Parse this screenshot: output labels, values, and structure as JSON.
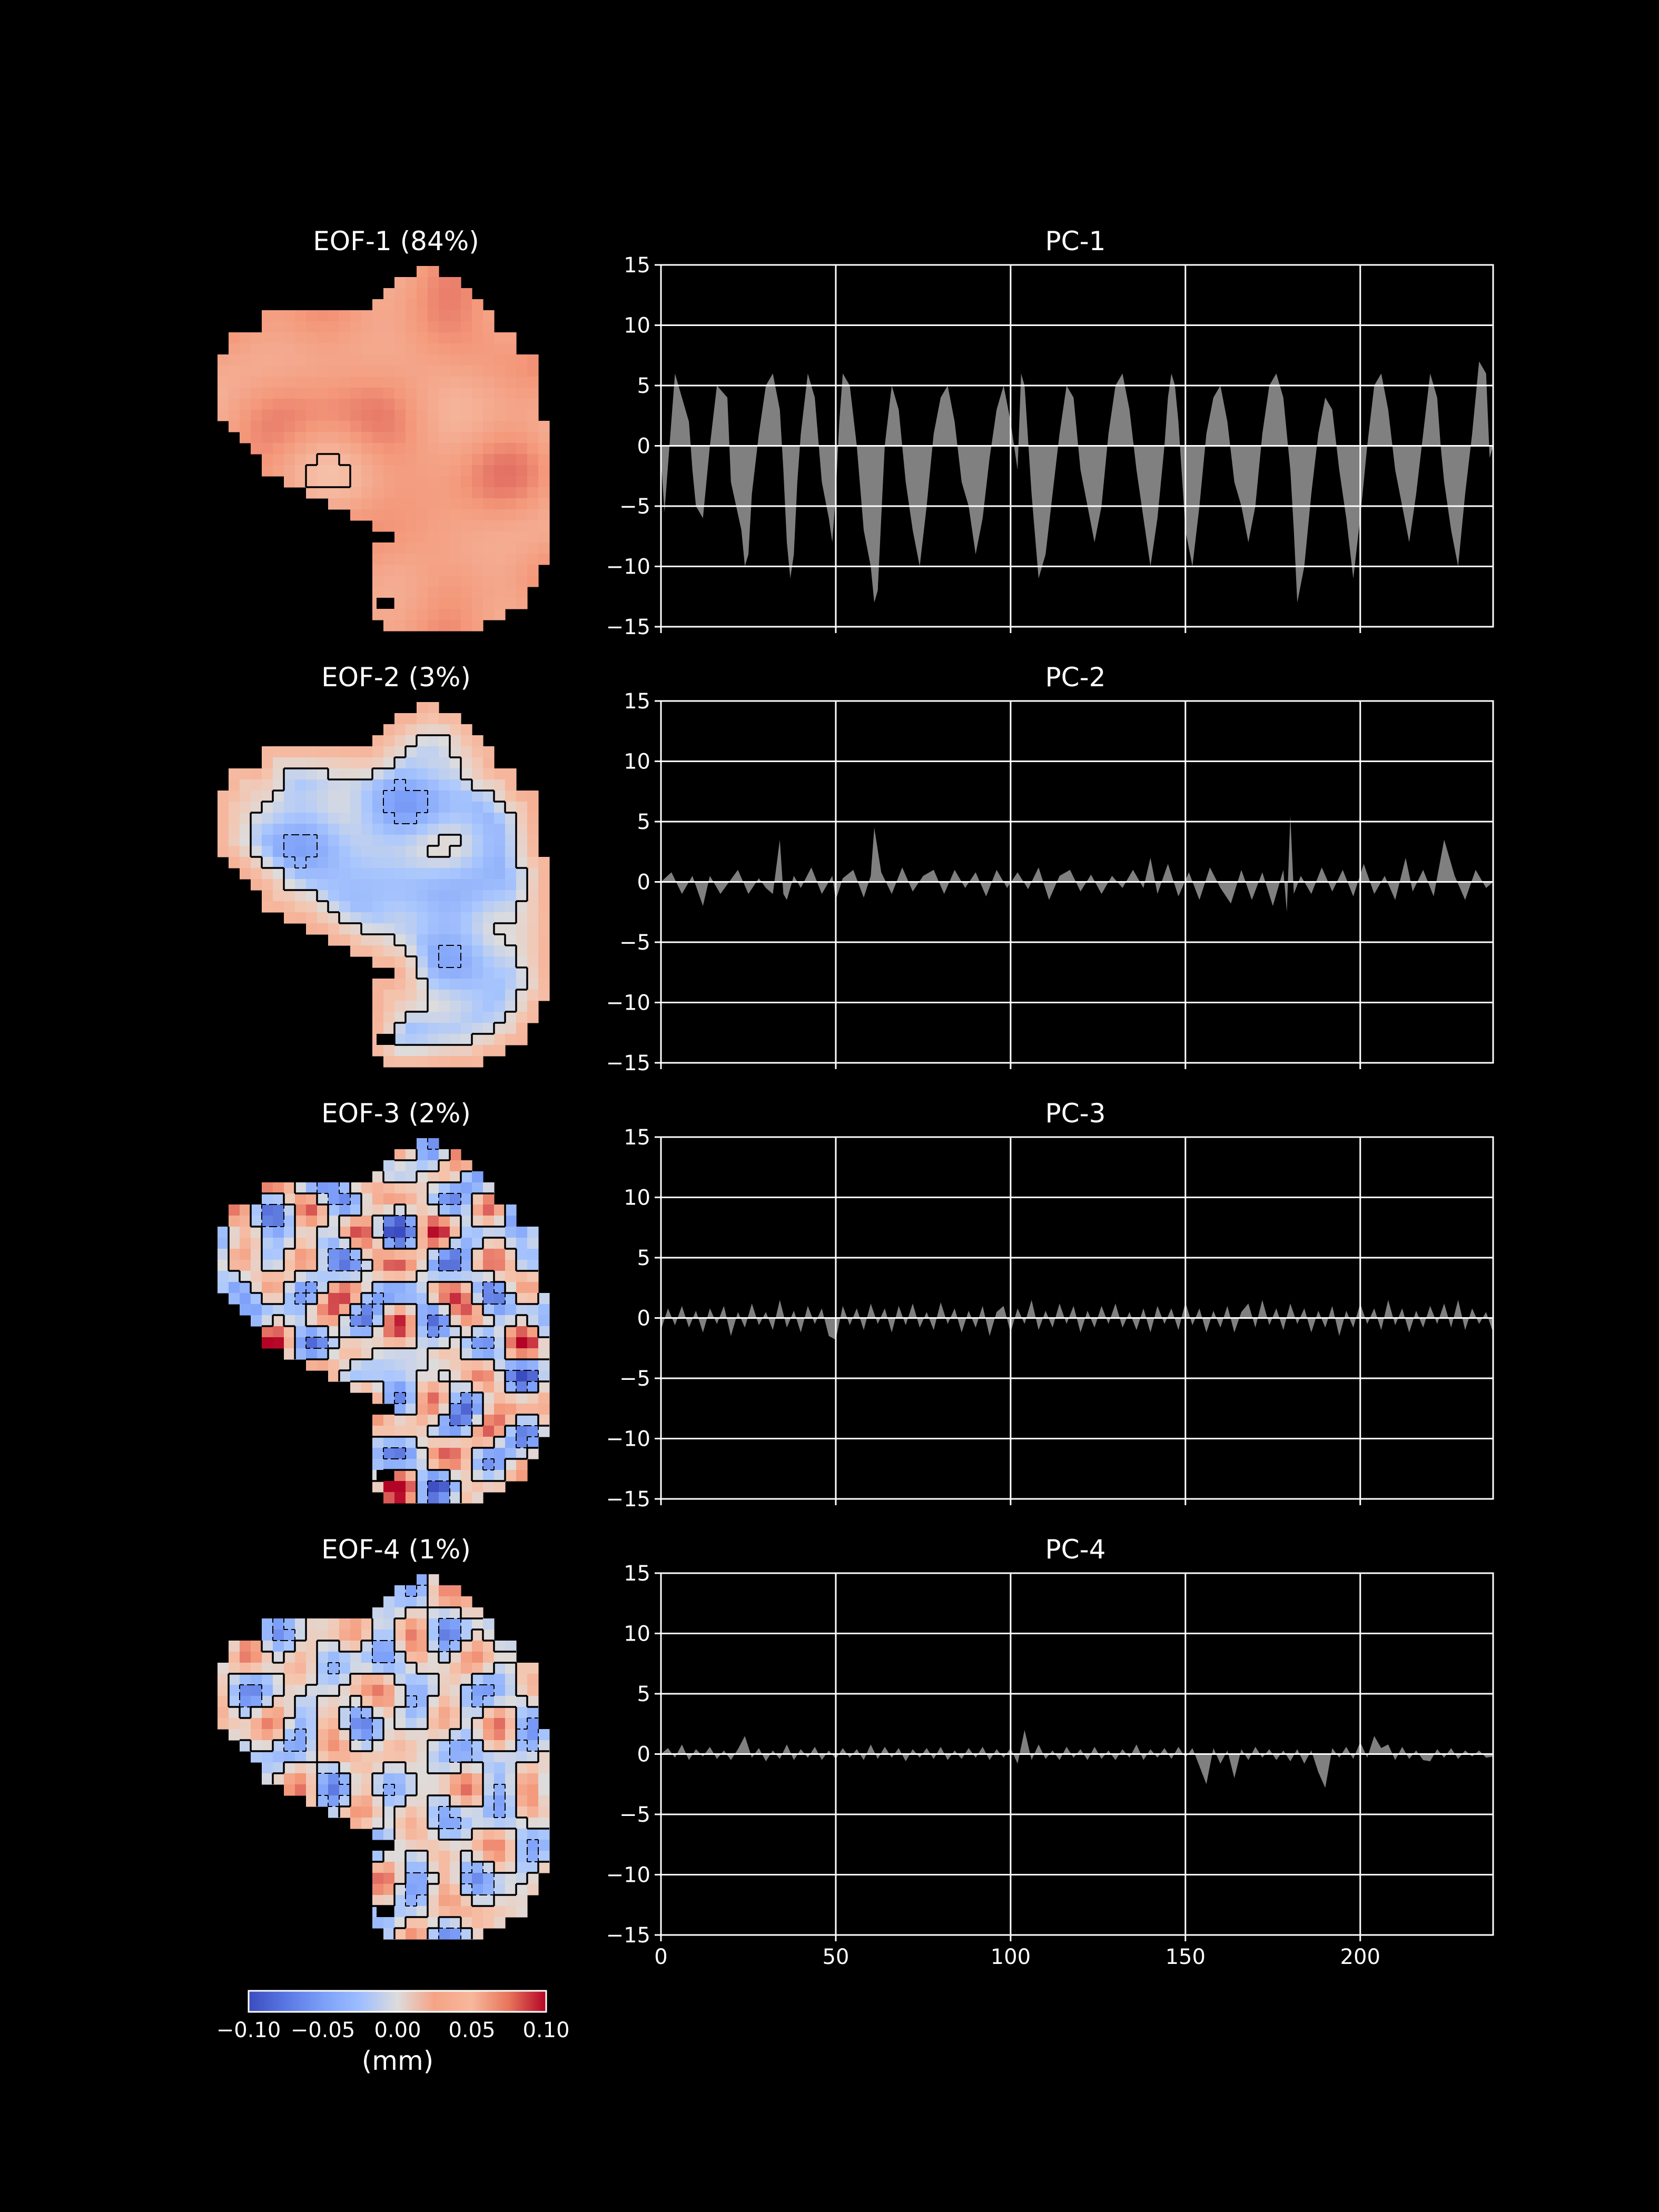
{
  "chart_data": [
    {
      "type": "heatmap",
      "title": "EOF-1 (84%)",
      "pattern": {
        "base": 0.045,
        "amp": 0.008,
        "waves": [
          [
            0.13,
            0.09,
            0.4
          ],
          [
            0.07,
            0.19,
            1.3
          ],
          [
            0.21,
            0.05,
            2.6
          ]
        ],
        "contours": [
          {
            "level": 0.028,
            "dashed": false
          }
        ]
      }
    },
    {
      "type": "area",
      "title": "PC-1",
      "xlim": [
        0,
        238
      ],
      "ylim": [
        -15,
        15
      ],
      "xticks": [
        0,
        50,
        100,
        150,
        200
      ],
      "yticks": [
        15,
        10,
        5,
        0,
        -5,
        -10,
        -15
      ],
      "show_xticklabels": false,
      "grid": true,
      "x": [
        0,
        1,
        4,
        5,
        8,
        9,
        10,
        12,
        14,
        16,
        19,
        20,
        23,
        24,
        25,
        26,
        28,
        30,
        32,
        34,
        35,
        36,
        37,
        38,
        39,
        40,
        42,
        44,
        46,
        48,
        49,
        50,
        51,
        52,
        54,
        56,
        58,
        60,
        61,
        62,
        63,
        64,
        66,
        68,
        70,
        72,
        74,
        76,
        78,
        80,
        82,
        84,
        86,
        88,
        90,
        92,
        94,
        96,
        98,
        100,
        101,
        102,
        103,
        104,
        106,
        108,
        110,
        112,
        114,
        116,
        118,
        120,
        122,
        124,
        126,
        128,
        130,
        132,
        134,
        136,
        138,
        140,
        142,
        144,
        145,
        146,
        147,
        148,
        150,
        152,
        154,
        156,
        158,
        160,
        162,
        164,
        166,
        168,
        170,
        172,
        174,
        176,
        178,
        180,
        181,
        182,
        184,
        186,
        188,
        190,
        192,
        194,
        196,
        198,
        200,
        202,
        204,
        206,
        208,
        210,
        212,
        214,
        216,
        218,
        220,
        222,
        223,
        224,
        226,
        228,
        230,
        232,
        234,
        236,
        237,
        238
      ],
      "y": [
        -1,
        -5.5,
        6,
        5,
        2,
        -2,
        -5,
        -6,
        0,
        5,
        4,
        -3,
        -7,
        -10,
        -9,
        -4,
        1,
        5,
        6,
        3,
        -2,
        -8,
        -11,
        -9,
        -3,
        1,
        6,
        4,
        -3,
        -6,
        -8,
        -4,
        2,
        6,
        5,
        0,
        -7,
        -10,
        -13,
        -12,
        -6,
        0,
        5,
        3,
        -3,
        -7,
        -10,
        -5,
        1,
        4,
        5,
        2,
        -3,
        -5,
        -9,
        -6,
        -1,
        3,
        5,
        2,
        0,
        -2,
        6,
        5,
        -4,
        -11,
        -9,
        -4,
        1,
        5,
        4,
        -2,
        -5,
        -8,
        -5,
        1,
        5,
        6,
        3,
        -2,
        -6,
        -10,
        -6,
        0,
        4,
        6,
        5,
        2,
        -7,
        -10,
        -5,
        1,
        4,
        5,
        2,
        -3,
        -5,
        -8,
        -5,
        1,
        5,
        6,
        4,
        -2,
        -7,
        -13,
        -10,
        -4,
        1,
        4,
        3,
        -2,
        -6,
        -11,
        -6,
        0,
        5,
        6,
        3,
        -2,
        -5,
        -8,
        -4,
        1,
        6,
        4,
        0,
        -3,
        -7,
        -10,
        -4,
        1,
        7,
        6,
        -1,
        0
      ]
    },
    {
      "type": "heatmap",
      "title": "EOF-2 (3%)",
      "pattern": {
        "base": -0.022,
        "amp": 0.012,
        "waves": [
          [
            0.17,
            0.11,
            0.7
          ],
          [
            0.09,
            0.23,
            2.1
          ],
          [
            0.29,
            0.07,
            3.3
          ]
        ],
        "edge": {
          "width": 4.2,
          "value": 0.045
        },
        "contours": [
          {
            "level": 0.0,
            "dashed": false
          },
          {
            "level": -0.04,
            "dashed": true
          }
        ]
      }
    },
    {
      "type": "area",
      "title": "PC-2",
      "xlim": [
        0,
        238
      ],
      "ylim": [
        -15,
        15
      ],
      "xticks": [
        0,
        50,
        100,
        150,
        200
      ],
      "yticks": [
        15,
        10,
        5,
        0,
        -5,
        -10,
        -15
      ],
      "show_xticklabels": false,
      "grid": true,
      "x": [
        0,
        3,
        6,
        9,
        12,
        14,
        17,
        20,
        22,
        25,
        28,
        30,
        32,
        34,
        35,
        36,
        38,
        40,
        43,
        46,
        49,
        50,
        52,
        55,
        58,
        60,
        61,
        63,
        66,
        69,
        72,
        75,
        78,
        81,
        84,
        87,
        90,
        93,
        96,
        99,
        102,
        105,
        108,
        111,
        114,
        117,
        120,
        123,
        126,
        129,
        132,
        135,
        138,
        140,
        142,
        145,
        148,
        151,
        154,
        157,
        160,
        163,
        166,
        169,
        172,
        175,
        178,
        179,
        180,
        181,
        183,
        186,
        189,
        192,
        195,
        198,
        201,
        204,
        207,
        210,
        213,
        215,
        218,
        221,
        224,
        227,
        230,
        233,
        236,
        238
      ],
      "y": [
        0,
        0.8,
        -1,
        0.5,
        -2,
        0.5,
        -1,
        0.2,
        1,
        -1,
        0.3,
        -0.5,
        -1,
        3.5,
        -1,
        -1.5,
        0.5,
        -0.5,
        1.2,
        -1,
        0.5,
        -1.5,
        0.3,
        1,
        -1.3,
        0.5,
        4.5,
        0.8,
        -1,
        1.2,
        -0.8,
        0.5,
        1,
        -1,
        1,
        -0.5,
        0.8,
        -1.2,
        1,
        -0.5,
        0.8,
        -0.6,
        1.2,
        -1.5,
        0.5,
        1,
        -0.8,
        0.6,
        -1,
        0.5,
        -0.5,
        1,
        -0.5,
        2,
        -1,
        1.5,
        -1.2,
        0.8,
        -1.5,
        1.2,
        -0.5,
        -1.8,
        1,
        -1.5,
        0.8,
        -2,
        1,
        -2.5,
        5.5,
        -1,
        0.5,
        -1,
        1.2,
        -0.8,
        1,
        -1.2,
        1.5,
        -1,
        0.5,
        -1.5,
        2,
        -0.8,
        1,
        -1.2,
        3.5,
        0.5,
        -1.5,
        1,
        -0.5,
        0
      ],
      "area_note": ""
    },
    {
      "type": "heatmap",
      "title": "EOF-3 (2%)",
      "pattern": {
        "base": 0.0,
        "amp": 0.045,
        "waves": [
          [
            0.31,
            0.19,
            0.9
          ],
          [
            0.13,
            0.37,
            1.7
          ],
          [
            0.41,
            0.27,
            4.1
          ]
        ],
        "contours": [
          {
            "level": 0.0,
            "dashed": false
          },
          {
            "level": -0.05,
            "dashed": true
          }
        ]
      }
    },
    {
      "type": "area",
      "title": "PC-3",
      "xlim": [
        0,
        238
      ],
      "ylim": [
        -15,
        15
      ],
      "xticks": [
        0,
        50,
        100,
        150,
        200
      ],
      "yticks": [
        15,
        10,
        5,
        0,
        -5,
        -10,
        -15
      ],
      "show_xticklabels": false,
      "grid": true,
      "x": [
        0,
        2,
        4,
        6,
        8,
        10,
        12,
        14,
        16,
        18,
        20,
        22,
        24,
        26,
        28,
        30,
        32,
        34,
        36,
        38,
        40,
        42,
        44,
        46,
        48,
        50,
        52,
        54,
        56,
        58,
        60,
        62,
        64,
        66,
        68,
        70,
        72,
        74,
        76,
        78,
        80,
        82,
        84,
        86,
        88,
        90,
        92,
        94,
        96,
        98,
        100,
        102,
        104,
        106,
        108,
        110,
        112,
        114,
        116,
        118,
        120,
        122,
        124,
        126,
        128,
        130,
        132,
        134,
        136,
        138,
        140,
        142,
        144,
        146,
        148,
        150,
        152,
        154,
        156,
        158,
        160,
        162,
        164,
        166,
        168,
        170,
        172,
        174,
        176,
        178,
        180,
        182,
        184,
        186,
        188,
        190,
        192,
        194,
        196,
        198,
        200,
        202,
        204,
        206,
        208,
        210,
        212,
        214,
        216,
        218,
        220,
        222,
        224,
        226,
        228,
        230,
        232,
        234,
        236,
        238
      ],
      "y": [
        -1,
        0.8,
        -0.6,
        1,
        -0.8,
        0.6,
        -1.2,
        0.8,
        -0.5,
        1,
        -1.5,
        0.5,
        -0.8,
        1.2,
        -0.6,
        0.5,
        -1,
        1.5,
        -0.8,
        0.6,
        -1.2,
        1,
        -0.5,
        0.8,
        -1.5,
        -1.8,
        1,
        -0.6,
        0.8,
        -1,
        1.2,
        -0.5,
        0.8,
        -1.2,
        1,
        -0.6,
        1.2,
        -0.8,
        0.5,
        -1,
        1.3,
        -0.5,
        0.8,
        -1.2,
        0.6,
        -0.8,
        1,
        -1.5,
        0.5,
        1,
        -1.2,
        0.8,
        -0.5,
        1.5,
        -1,
        0.6,
        -0.8,
        1.2,
        -0.5,
        1,
        -1.2,
        0.6,
        -0.8,
        1,
        -0.5,
        1.2,
        -0.8,
        0.5,
        -1,
        0.8,
        -1.2,
        1,
        -0.5,
        0.8,
        -1,
        1.3,
        -0.6,
        0.8,
        -1.2,
        0.6,
        -0.8,
        1,
        -1.2,
        0.5,
        1.2,
        -0.8,
        1.5,
        -0.6,
        0.8,
        -1,
        1.2,
        -0.5,
        0.8,
        -1.2,
        0.6,
        -0.8,
        1,
        -1.5,
        0.6,
        -0.8,
        1.2,
        -0.5,
        0.8,
        -1,
        1.5,
        -0.6,
        0.8,
        -1.2,
        0.6,
        -0.8,
        1,
        -0.5,
        1.2,
        -0.8,
        1.5,
        -1,
        0.8,
        -0.5,
        0.5,
        -1.2
      ]
    },
    {
      "type": "heatmap",
      "title": "EOF-4 (1%)",
      "pattern": {
        "base": 0.0,
        "amp": 0.03,
        "waves": [
          [
            0.23,
            0.29,
            1.1
          ],
          [
            0.37,
            0.11,
            2.9
          ],
          [
            0.15,
            0.41,
            5.3
          ]
        ],
        "contours": [
          {
            "level": 0.0,
            "dashed": false
          },
          {
            "level": -0.035,
            "dashed": true
          }
        ]
      }
    },
    {
      "type": "area",
      "title": "PC-4",
      "xlim": [
        0,
        238
      ],
      "ylim": [
        -15,
        15
      ],
      "xticks": [
        0,
        50,
        100,
        150,
        200
      ],
      "yticks": [
        15,
        10,
        5,
        0,
        -5,
        -10,
        -15
      ],
      "show_xticklabels": true,
      "grid": true,
      "x": [
        0,
        2,
        4,
        6,
        8,
        10,
        12,
        14,
        16,
        18,
        20,
        22,
        24,
        26,
        28,
        30,
        32,
        34,
        36,
        38,
        40,
        42,
        44,
        46,
        48,
        50,
        52,
        54,
        56,
        58,
        60,
        62,
        64,
        66,
        68,
        70,
        72,
        74,
        76,
        78,
        80,
        82,
        84,
        86,
        88,
        90,
        92,
        94,
        96,
        98,
        100,
        102,
        104,
        106,
        108,
        110,
        112,
        114,
        116,
        118,
        120,
        122,
        124,
        126,
        128,
        130,
        132,
        134,
        136,
        138,
        140,
        142,
        144,
        146,
        148,
        150,
        152,
        154,
        156,
        158,
        160,
        162,
        164,
        166,
        168,
        170,
        172,
        174,
        176,
        178,
        180,
        182,
        184,
        186,
        188,
        190,
        192,
        194,
        196,
        198,
        200,
        202,
        204,
        206,
        208,
        210,
        212,
        214,
        216,
        218,
        220,
        222,
        224,
        226,
        228,
        230,
        232,
        234,
        236,
        238
      ],
      "y": [
        0,
        0.5,
        -0.3,
        0.8,
        -0.5,
        0.4,
        -0.2,
        0.6,
        -0.4,
        0.3,
        -0.5,
        0.4,
        1.5,
        -0.3,
        0.5,
        -0.6,
        0.3,
        -0.4,
        0.8,
        -0.5,
        0.4,
        -0.3,
        0.6,
        -0.5,
        0.3,
        -0.4,
        0.5,
        -0.3,
        0.4,
        -0.5,
        0.8,
        -0.4,
        0.6,
        -0.3,
        0.5,
        -0.6,
        0.4,
        -0.3,
        0.5,
        -0.4,
        0.6,
        -0.5,
        0.3,
        -0.4,
        0.5,
        -0.3,
        0.6,
        -0.5,
        0.4,
        -0.3,
        0.5,
        -0.8,
        2,
        -0.5,
        0.8,
        -0.4,
        0.3,
        -0.5,
        0.6,
        -0.3,
        0.4,
        -0.5,
        0.6,
        -0.4,
        0.3,
        -0.5,
        0.4,
        -0.3,
        0.8,
        -0.5,
        0.4,
        -0.3,
        0.5,
        -0.4,
        0.6,
        -0.3,
        0.5,
        -1,
        -2.5,
        0.5,
        -0.8,
        0.3,
        -2,
        0.4,
        -0.5,
        0.6,
        -0.3,
        0.4,
        -0.5,
        0.3,
        -0.6,
        0.4,
        -0.8,
        0.3,
        -1.5,
        -2.8,
        0.5,
        -0.3,
        0.6,
        -0.4,
        1,
        -0.3,
        1.5,
        0.5,
        0.8,
        -0.5,
        0.6,
        -0.4,
        0.3,
        -0.5,
        -0.6,
        0.4,
        -0.3,
        0.5,
        -0.4,
        0.3,
        -0.2,
        0.3,
        -0.3,
        -0.2
      ]
    }
  ],
  "colorbar": {
    "ticks": [
      "−0.10",
      "−0.05",
      "0.00",
      "0.05",
      "0.10"
    ],
    "label": "(mm)",
    "colormap": "coolwarm",
    "vmin": -0.1,
    "vmax": 0.1
  },
  "colors": {
    "background": "#000000",
    "axis": "#ffffff",
    "grid": "#ffffff",
    "area_fill": "#808080",
    "contour": "#000000"
  }
}
